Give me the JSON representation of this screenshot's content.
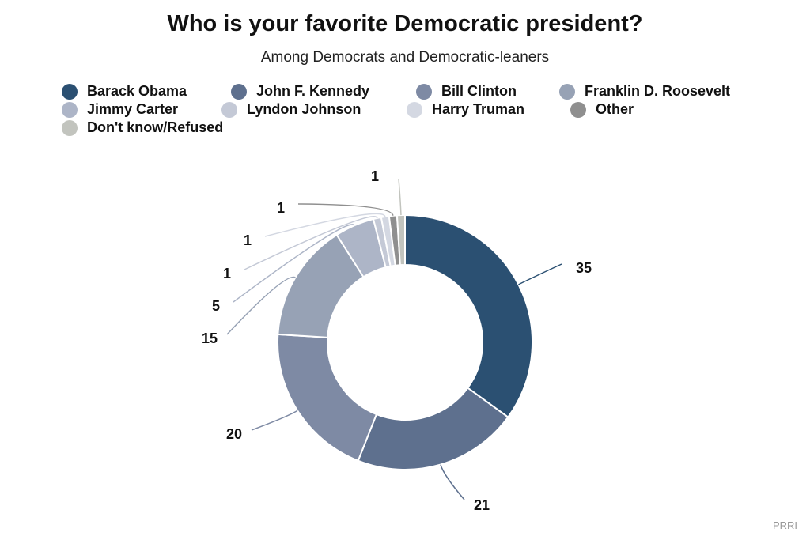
{
  "chart_data": {
    "type": "pie",
    "variant": "donut",
    "title": "Who is your favorite Democratic president?",
    "subtitle": "Among Democrats and Democratic-leaners",
    "legend_position": "top",
    "categories": [
      "Barack Obama",
      "John F. Kennedy",
      "Bill Clinton",
      "Franklin D. Roosevelt",
      "Jimmy Carter",
      "Lyndon Johnson",
      "Harry Truman",
      "Other",
      "Don't know/Refused"
    ],
    "values": [
      35,
      21,
      20,
      15,
      5,
      1,
      1,
      1,
      1
    ],
    "value_labels": [
      "35",
      "21",
      "20",
      "15",
      "5",
      "1",
      "1",
      "1",
      "1"
    ],
    "colors": [
      "#2b5072",
      "#5e708e",
      "#7e8aa4",
      "#97a2b5",
      "#adb5c7",
      "#c4c9d6",
      "#d4d8e2",
      "#8f8f8f",
      "#c2c4be"
    ]
  },
  "source": "PRRI"
}
